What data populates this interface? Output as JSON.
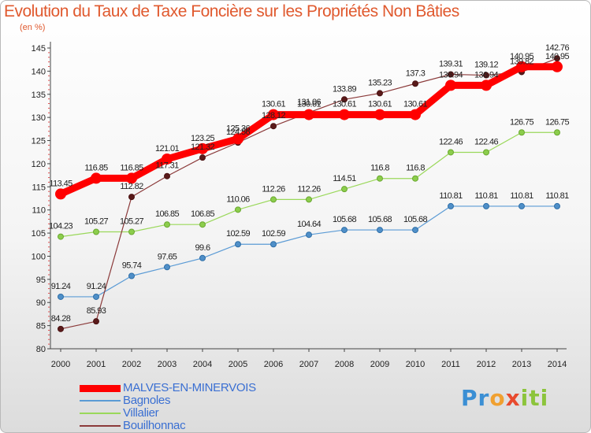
{
  "title": "Evolution du Taux de Taxe Foncière sur les Propriétés Non Bâties",
  "unit_label": "(en %)",
  "logo": {
    "text": "Proxiti"
  },
  "chart_data": {
    "type": "line",
    "title": "Evolution du Taux de Taxe Foncière sur les Propriétés Non Bâties",
    "ylabel": "(en %)",
    "xlabel": "",
    "ylim": [
      80,
      145
    ],
    "yticks": [
      80,
      85,
      90,
      95,
      100,
      105,
      110,
      115,
      120,
      125,
      130,
      135,
      140,
      145
    ],
    "categories": [
      "2000",
      "2001",
      "2002",
      "2003",
      "2004",
      "2005",
      "2006",
      "2007",
      "2008",
      "2009",
      "2010",
      "2011",
      "2012",
      "2013",
      "2014"
    ],
    "grid": false,
    "legend_position": "bottom-left",
    "series": [
      {
        "name": "MALVES-EN-MINERVOIS",
        "color": "#ff0000",
        "values": [
          113.45,
          116.85,
          116.85,
          121.01,
          123.25,
          125.36,
          130.61,
          130.61,
          130.61,
          130.61,
          130.61,
          136.94,
          136.94,
          140.95,
          140.95
        ],
        "labels": [
          "113.45",
          "116.85",
          "116.85",
          "121.01",
          "123.25",
          "125.36",
          "130.61",
          "130.61",
          "130.61",
          "130.61",
          "130.61",
          "136.94",
          "136.94",
          "140.95",
          "140.95"
        ]
      },
      {
        "name": "Bagnoles",
        "color": "#5b9bd5",
        "values": [
          91.24,
          91.24,
          95.74,
          97.65,
          99.6,
          102.59,
          102.59,
          104.64,
          105.68,
          105.68,
          105.68,
          110.81,
          110.81,
          110.81,
          110.81
        ],
        "labels": [
          "91.24",
          "91.24",
          "95.74",
          "97.65",
          "99.6",
          "102.59",
          "102.59",
          "104.64",
          "105.68",
          "105.68",
          "105.68",
          "110.81",
          "110.81",
          "110.81",
          "110.81"
        ]
      },
      {
        "name": "Villalier",
        "color": "#9ad85a",
        "values": [
          104.23,
          105.27,
          105.27,
          106.85,
          106.85,
          110.06,
          112.26,
          112.26,
          114.51,
          116.8,
          116.8,
          122.46,
          122.46,
          126.75,
          126.75
        ],
        "labels": [
          "104.23",
          "105.27",
          "105.27",
          "106.85",
          "106.85",
          "110.06",
          "112.26",
          "112.26",
          "114.51",
          "116.8",
          "116.8",
          "122.46",
          "122.46",
          "126.75",
          "126.75"
        ]
      },
      {
        "name": "Bouilhonnac",
        "color": "#8b3a3a",
        "values": [
          84.28,
          85.93,
          112.82,
          117.31,
          121.32,
          124.56,
          128.12,
          131.06,
          133.89,
          135.23,
          137.3,
          139.31,
          139.12,
          139.82,
          142.76
        ],
        "labels": [
          "84.28",
          "85.93",
          "112.82",
          "117.31",
          "121.32",
          "124.56",
          "128.12",
          "131.06",
          "133.89",
          "135.23",
          "137.3",
          "139.31",
          "139.12",
          "139.82",
          "142.76"
        ]
      }
    ]
  }
}
